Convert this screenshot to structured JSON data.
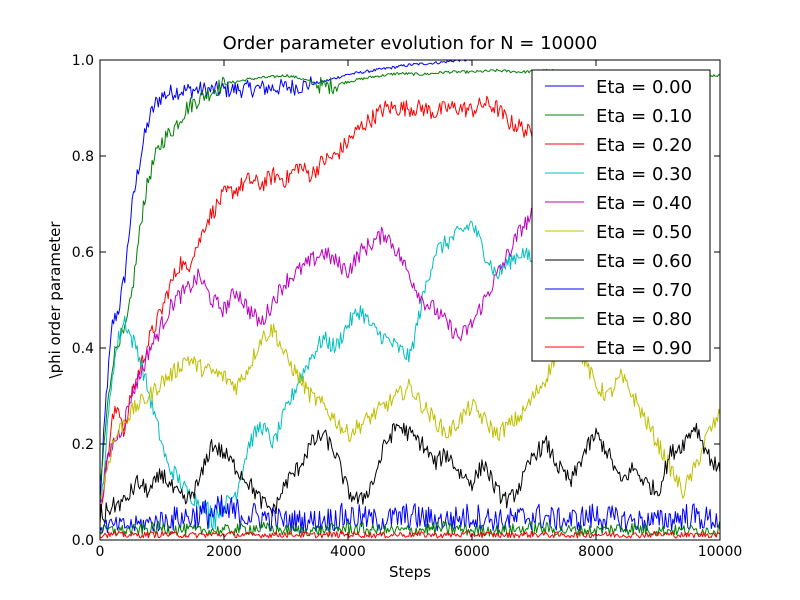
{
  "chart_data": {
    "type": "line",
    "title": "Order parameter evolution for N = 10000",
    "xlabel": "Steps",
    "ylabel": "\\phi order parameter",
    "xlim": [
      0,
      10000
    ],
    "ylim": [
      0.0,
      1.0
    ],
    "xticks": [
      0,
      2000,
      4000,
      6000,
      8000,
      10000
    ],
    "yticks": [
      0.0,
      0.2,
      0.4,
      0.6,
      0.8,
      1.0
    ],
    "xtick_labels": [
      "0",
      "2000",
      "4000",
      "6000",
      "8000",
      "10000"
    ],
    "ytick_labels": [
      "0.0",
      "0.2",
      "0.4",
      "0.6",
      "0.8",
      "1.0"
    ],
    "grid": false,
    "legend_position": "top-right",
    "series": [
      {
        "name": "Eta = 0.00",
        "color": "#0000ff",
        "x": [
          0,
          100,
          200,
          300,
          400,
          500,
          600,
          700,
          800,
          900,
          1000,
          1200,
          1400,
          1600,
          1800,
          2000,
          2400,
          2800,
          3200,
          3600,
          4000,
          4500,
          5000,
          5500,
          5800,
          6000
        ],
        "y": [
          0.08,
          0.3,
          0.45,
          0.48,
          0.55,
          0.68,
          0.76,
          0.83,
          0.88,
          0.91,
          0.925,
          0.935,
          0.937,
          0.938,
          0.937,
          0.938,
          0.94,
          0.942,
          0.945,
          0.955,
          0.97,
          0.98,
          0.99,
          0.995,
          1.0,
          1.0
        ]
      },
      {
        "name": "Eta = 0.10",
        "color": "#008000",
        "x": [
          0,
          100,
          200,
          300,
          400,
          500,
          600,
          700,
          800,
          900,
          1000,
          1200,
          1400,
          1600,
          1800,
          2000,
          2200,
          2400,
          2600,
          2800,
          3000,
          3200,
          3400,
          3600,
          3800,
          4000,
          4400,
          4800,
          5200,
          5600,
          6000,
          6400,
          6800,
          7200,
          7600,
          8000,
          8400,
          8800,
          9200,
          9600,
          10000
        ],
        "y": [
          0.1,
          0.25,
          0.37,
          0.42,
          0.43,
          0.5,
          0.6,
          0.7,
          0.76,
          0.8,
          0.83,
          0.86,
          0.9,
          0.92,
          0.935,
          0.95,
          0.955,
          0.96,
          0.963,
          0.965,
          0.968,
          0.963,
          0.955,
          0.945,
          0.948,
          0.955,
          0.965,
          0.972,
          0.97,
          0.975,
          0.975,
          0.978,
          0.975,
          0.978,
          0.975,
          0.972,
          0.97,
          0.972,
          0.97,
          0.968,
          0.968
        ]
      },
      {
        "name": "Eta = 0.20",
        "color": "#ff0000",
        "x": [
          0,
          100,
          200,
          300,
          400,
          500,
          600,
          700,
          800,
          900,
          1000,
          1100,
          1200,
          1300,
          1400,
          1500,
          1600,
          1700,
          1800,
          1900,
          2000,
          2200,
          2400,
          2600,
          2800,
          3000,
          3200,
          3400,
          3600,
          3800,
          4000,
          4200,
          4400,
          4600,
          4800,
          5000,
          5200,
          5400,
          5600,
          5800,
          6000,
          6200,
          6400,
          6600,
          6800,
          7000,
          7200
        ],
        "y": [
          0.06,
          0.15,
          0.25,
          0.28,
          0.22,
          0.3,
          0.34,
          0.38,
          0.42,
          0.45,
          0.48,
          0.52,
          0.55,
          0.58,
          0.56,
          0.6,
          0.62,
          0.66,
          0.68,
          0.7,
          0.72,
          0.73,
          0.75,
          0.74,
          0.76,
          0.75,
          0.78,
          0.76,
          0.79,
          0.8,
          0.83,
          0.86,
          0.88,
          0.9,
          0.9,
          0.9,
          0.9,
          0.89,
          0.9,
          0.9,
          0.895,
          0.91,
          0.9,
          0.87,
          0.86,
          0.84,
          0.83
        ]
      },
      {
        "name": "Eta = 0.30",
        "color": "#00bfbf",
        "x": [
          0,
          100,
          200,
          300,
          400,
          500,
          600,
          700,
          800,
          900,
          1000,
          1100,
          1200,
          1400,
          1600,
          1800,
          2000,
          2200,
          2400,
          2600,
          2800,
          3000,
          3200,
          3400,
          3600,
          3800,
          4000,
          4200,
          4400,
          4600,
          4800,
          5000,
          5200,
          5400,
          5600,
          5800,
          6000,
          6200,
          6400,
          6600,
          6800,
          7000,
          7200
        ],
        "y": [
          0.05,
          0.2,
          0.35,
          0.42,
          0.46,
          0.42,
          0.4,
          0.35,
          0.3,
          0.25,
          0.2,
          0.15,
          0.14,
          0.1,
          0.08,
          0.05,
          0.07,
          0.1,
          0.2,
          0.24,
          0.2,
          0.27,
          0.33,
          0.38,
          0.42,
          0.4,
          0.45,
          0.48,
          0.44,
          0.42,
          0.4,
          0.38,
          0.5,
          0.6,
          0.62,
          0.64,
          0.66,
          0.6,
          0.55,
          0.58,
          0.6,
          0.58,
          0.6
        ]
      },
      {
        "name": "Eta = 0.40",
        "color": "#bf00bf",
        "x": [
          0,
          100,
          200,
          300,
          400,
          500,
          600,
          700,
          800,
          900,
          1000,
          1200,
          1400,
          1600,
          1800,
          2000,
          2200,
          2400,
          2600,
          2800,
          3000,
          3200,
          3400,
          3600,
          3800,
          4000,
          4200,
          4400,
          4600,
          4800,
          5000,
          5200,
          5400,
          5600,
          5800,
          6000,
          6200,
          6400,
          6600,
          6800,
          7000,
          7200
        ],
        "y": [
          0.07,
          0.15,
          0.2,
          0.22,
          0.25,
          0.3,
          0.33,
          0.36,
          0.4,
          0.42,
          0.45,
          0.5,
          0.52,
          0.55,
          0.5,
          0.48,
          0.52,
          0.48,
          0.45,
          0.5,
          0.54,
          0.56,
          0.58,
          0.6,
          0.58,
          0.56,
          0.6,
          0.62,
          0.64,
          0.6,
          0.55,
          0.5,
          0.48,
          0.45,
          0.42,
          0.45,
          0.5,
          0.55,
          0.6,
          0.65,
          0.68,
          0.7
        ]
      },
      {
        "name": "Eta = 0.50",
        "color": "#bfbf00",
        "x": [
          0,
          200,
          400,
          600,
          800,
          1000,
          1200,
          1400,
          1600,
          1800,
          2000,
          2200,
          2400,
          2600,
          2800,
          3000,
          3200,
          3400,
          3600,
          3800,
          4000,
          4200,
          4400,
          4600,
          4800,
          5000,
          5200,
          5400,
          5600,
          5800,
          6000,
          6200,
          6400,
          6600,
          6800,
          7000,
          7200,
          7400,
          7600,
          7800,
          8000,
          8200,
          8400,
          8600,
          8800,
          9000,
          9200,
          9400,
          9600,
          9800,
          10000
        ],
        "y": [
          0.08,
          0.2,
          0.25,
          0.28,
          0.3,
          0.33,
          0.35,
          0.38,
          0.36,
          0.35,
          0.34,
          0.32,
          0.36,
          0.42,
          0.44,
          0.38,
          0.34,
          0.3,
          0.28,
          0.25,
          0.22,
          0.24,
          0.26,
          0.28,
          0.3,
          0.32,
          0.28,
          0.25,
          0.22,
          0.25,
          0.28,
          0.25,
          0.22,
          0.24,
          0.26,
          0.3,
          0.34,
          0.4,
          0.42,
          0.38,
          0.32,
          0.3,
          0.34,
          0.3,
          0.25,
          0.2,
          0.15,
          0.1,
          0.15,
          0.22,
          0.26
        ]
      },
      {
        "name": "Eta = 0.60",
        "color": "#000000",
        "x": [
          0,
          200,
          400,
          600,
          800,
          1000,
          1200,
          1400,
          1600,
          1800,
          2000,
          2200,
          2400,
          2600,
          2800,
          3000,
          3200,
          3400,
          3600,
          3800,
          4000,
          4200,
          4400,
          4600,
          4800,
          5000,
          5200,
          5400,
          5600,
          5800,
          6000,
          6200,
          6400,
          6600,
          6800,
          7000,
          7200,
          7400,
          7600,
          7800,
          8000,
          8200,
          8400,
          8600,
          8800,
          9000,
          9200,
          9400,
          9600,
          9800,
          10000
        ],
        "y": [
          0.05,
          0.07,
          0.08,
          0.12,
          0.1,
          0.14,
          0.1,
          0.08,
          0.12,
          0.2,
          0.18,
          0.15,
          0.12,
          0.08,
          0.06,
          0.12,
          0.15,
          0.2,
          0.22,
          0.18,
          0.1,
          0.08,
          0.12,
          0.2,
          0.24,
          0.22,
          0.2,
          0.16,
          0.18,
          0.14,
          0.12,
          0.16,
          0.1,
          0.08,
          0.12,
          0.18,
          0.2,
          0.15,
          0.12,
          0.18,
          0.22,
          0.18,
          0.12,
          0.15,
          0.12,
          0.1,
          0.18,
          0.2,
          0.24,
          0.18,
          0.14
        ]
      },
      {
        "name": "Eta = 0.70",
        "color": "#0000ff",
        "x": [
          0,
          500,
          1000,
          1500,
          2000,
          2500,
          3000,
          3500,
          4000,
          4500,
          5000,
          5500,
          6000,
          6500,
          7000,
          7500,
          8000,
          8500,
          9000,
          9500,
          10000
        ],
        "y": [
          0.03,
          0.03,
          0.04,
          0.05,
          0.06,
          0.05,
          0.04,
          0.04,
          0.05,
          0.04,
          0.05,
          0.04,
          0.05,
          0.04,
          0.05,
          0.04,
          0.05,
          0.04,
          0.04,
          0.05,
          0.04
        ]
      },
      {
        "name": "Eta = 0.80",
        "color": "#008000",
        "x": [
          0,
          500,
          1000,
          1500,
          2000,
          2500,
          3000,
          3500,
          4000,
          4500,
          5000,
          5500,
          6000,
          6500,
          7000,
          7500,
          8000,
          8500,
          9000,
          9500,
          10000
        ],
        "y": [
          0.02,
          0.02,
          0.025,
          0.02,
          0.02,
          0.025,
          0.02,
          0.02,
          0.025,
          0.02,
          0.02,
          0.025,
          0.02,
          0.02,
          0.025,
          0.02,
          0.02,
          0.025,
          0.02,
          0.02,
          0.02
        ]
      },
      {
        "name": "Eta = 0.90",
        "color": "#ff0000",
        "x": [
          0,
          500,
          1000,
          1500,
          2000,
          2500,
          3000,
          3500,
          4000,
          4500,
          5000,
          5500,
          6000,
          6500,
          7000,
          7500,
          8000,
          8500,
          9000,
          9500,
          10000
        ],
        "y": [
          0.012,
          0.01,
          0.012,
          0.01,
          0.012,
          0.01,
          0.012,
          0.01,
          0.012,
          0.01,
          0.012,
          0.01,
          0.012,
          0.01,
          0.012,
          0.01,
          0.012,
          0.01,
          0.012,
          0.01,
          0.012
        ]
      }
    ]
  }
}
